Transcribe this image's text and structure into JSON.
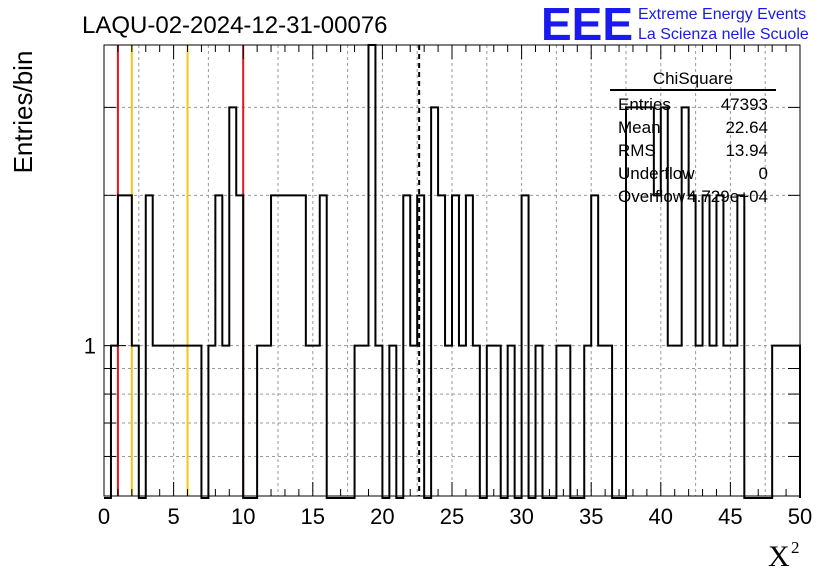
{
  "chart_data": {
    "type": "histogram",
    "title": "LAQU-02-2024-12-31-00076",
    "xlabel": "X",
    "xlabel_superscript": "2",
    "ylabel": "Entries/bin",
    "xlim": [
      0,
      50
    ],
    "ylim": [
      0.5,
      4
    ],
    "y_scale": "log",
    "grid": true,
    "x_ticks": [
      "0",
      "5",
      "10",
      "15",
      "20",
      "25",
      "30",
      "35",
      "40",
      "45",
      "50"
    ],
    "y_tick_labels": [
      "1"
    ],
    "bin_width": 0.5,
    "bins": [
      [
        0.5,
        1
      ],
      [
        1.0,
        2
      ],
      [
        1.5,
        2
      ],
      [
        2.0,
        1
      ],
      [
        3.0,
        2
      ],
      [
        3.5,
        1
      ],
      [
        4.0,
        1
      ],
      [
        4.5,
        1
      ],
      [
        5.0,
        1
      ],
      [
        5.5,
        1
      ],
      [
        6.0,
        1
      ],
      [
        6.5,
        1
      ],
      [
        7.5,
        1
      ],
      [
        8.0,
        2
      ],
      [
        8.5,
        1
      ],
      [
        9.0,
        3
      ],
      [
        9.5,
        2
      ],
      [
        11.0,
        1
      ],
      [
        11.5,
        1
      ],
      [
        12.0,
        2
      ],
      [
        12.5,
        2
      ],
      [
        13.0,
        2
      ],
      [
        13.5,
        2
      ],
      [
        14.0,
        2
      ],
      [
        14.5,
        1
      ],
      [
        15.0,
        1
      ],
      [
        15.5,
        2
      ],
      [
        18.0,
        1
      ],
      [
        18.5,
        1
      ],
      [
        19.0,
        4
      ],
      [
        19.5,
        1
      ],
      [
        20.5,
        1
      ],
      [
        21.5,
        2
      ],
      [
        22.0,
        1
      ],
      [
        22.5,
        2
      ],
      [
        23.5,
        3
      ],
      [
        24.0,
        2
      ],
      [
        24.5,
        1
      ],
      [
        25.0,
        2
      ],
      [
        25.5,
        1
      ],
      [
        26.0,
        2
      ],
      [
        26.5,
        1
      ],
      [
        27.5,
        1
      ],
      [
        28.0,
        1
      ],
      [
        29.0,
        1
      ],
      [
        30.0,
        2
      ],
      [
        31.0,
        1
      ],
      [
        32.5,
        1
      ],
      [
        33.0,
        1
      ],
      [
        34.5,
        1
      ],
      [
        35.0,
        2
      ],
      [
        35.5,
        1
      ],
      [
        36.0,
        1
      ],
      [
        37.5,
        3
      ],
      [
        38.0,
        3
      ],
      [
        38.5,
        3
      ],
      [
        39.0,
        3
      ],
      [
        39.5,
        2
      ],
      [
        40.0,
        3
      ],
      [
        40.5,
        1
      ],
      [
        41.0,
        1
      ],
      [
        41.5,
        3
      ],
      [
        42.0,
        2
      ],
      [
        42.5,
        1
      ],
      [
        43.0,
        2
      ],
      [
        43.5,
        1
      ],
      [
        44.0,
        2
      ],
      [
        44.5,
        1
      ],
      [
        45.0,
        1
      ],
      [
        45.5,
        2
      ],
      [
        48.0,
        1
      ],
      [
        48.5,
        1
      ],
      [
        49.0,
        1
      ],
      [
        49.5,
        1
      ]
    ],
    "vertical_lines": [
      {
        "x": 1.0,
        "color": "#e8141c",
        "style": "solid"
      },
      {
        "x": 2.0,
        "color": "#f5c518",
        "style": "solid"
      },
      {
        "x": 6.0,
        "color": "#f5c518",
        "style": "solid"
      },
      {
        "x": 10.0,
        "color": "#e8141c",
        "style": "solid"
      },
      {
        "x": 22.64,
        "color": "#000000",
        "style": "dashed"
      }
    ],
    "stats_box": {
      "title": "ChiSquare",
      "rows": [
        {
          "label": "Entries",
          "value": "47393"
        },
        {
          "label": "Mean",
          "value": "22.64"
        },
        {
          "label": "RMS",
          "value": "13.94"
        },
        {
          "label": "Underflow",
          "value": "0"
        },
        {
          "label": "Overflow",
          "value": "4.729e+04"
        }
      ]
    }
  },
  "logo": {
    "mark": "EEE",
    "line1": "Extreme Energy Events",
    "line2": "La Scienza nelle Scuole",
    "color": "#1a1aee"
  }
}
